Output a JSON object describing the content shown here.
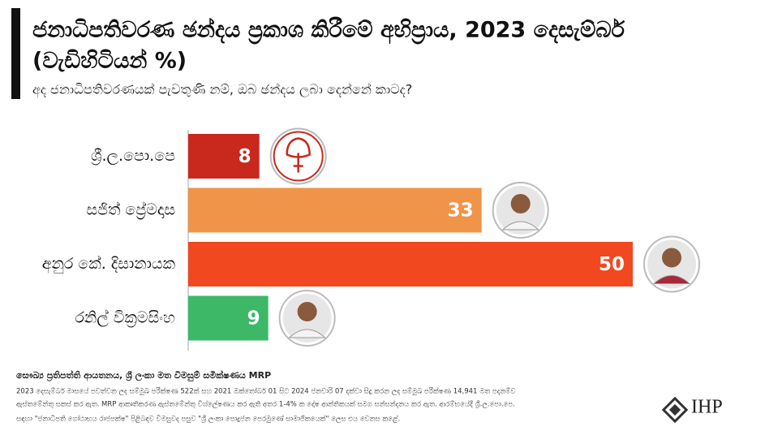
{
  "chart_data": {
    "type": "hbar",
    "title": "ජනාධිපතිවරණ ඡන්දය ප්‍රකාශ කිරීමේ අභිප්‍රාය, 2023 දෙසැම්බර්",
    "title_line2": "(වැඩිහිටියන් %)",
    "subtitle": "අද ජනාධිපතිවරණයක් පැවතුණි නම්, ඔබ ඡන්දය ලබා දෙන්නේ කාටද?",
    "categories": [
      "ශ්‍රී.ල.පො.පෙ",
      "සජිත් ප්‍රේමදාස",
      "අනුර කේ. දිසානායක",
      "රනිල් වික්‍රමසිංහ"
    ],
    "values": [
      8,
      33,
      50,
      9
    ],
    "colors": [
      "#c9281d",
      "#f0944a",
      "#f1481f",
      "#3cb867"
    ],
    "xlim": [
      0,
      50
    ],
    "source": "සෞඛ්‍ය ප්‍රතිපත්ති ආයතනය, ශ්‍රී ලංකා මත විමසුම් සමීක්ෂණය MRP",
    "notes": [
      "2023 දෙසැම්බර් මාසයේ පවත්වන ලද සම්මුඛ පරීක්ෂණ 522ක් සහ 2021 ඔක්තෝබර් 01 සිට 2024 ජනවාරි 07 දක්වා සිදු කරන ලද සම්මුඛ පරීක්ෂණ 14,941 මත පදනම්ව",
      "ඇස්තමේන්තු සකස් කර ඇත. MRP ආකෘතිකරණ ඇස්තමේන්තු විශ්ලේෂණය කර ඇති අතර 1-4% ක දෝෂ ආන්තිකයක් සමග සන්සන්දනය කර ඇත. ආරම්භයේදී ශ්‍රී.ල.පො.පෙ.",
      "සඳහා \"ජනාධිපති ගෝඨාභය රාජපක්ෂ\" පිළිබඳව විමසුවද පසුව \"ශ්‍රී ලංකා පොදුජන පෙරමුණේ සාමාජිකයෙක්\" ලෙස එය වෙනස කළේ."
    ],
    "logo": "IHP"
  }
}
